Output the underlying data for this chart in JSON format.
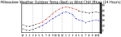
{
  "title": "Milwaukee Weather Outdoor Temp (Red) vs Wind Chill (Blue) (24 Hours)",
  "title_fontsize": 3.5,
  "temp_values": [
    10,
    8,
    7,
    9,
    11,
    13,
    16,
    21,
    26,
    32,
    37,
    41,
    44,
    46,
    45,
    43,
    41,
    38,
    36,
    35,
    34,
    35,
    36,
    35
  ],
  "wind_chill_values": [
    2,
    0,
    -1,
    1,
    3,
    6,
    9,
    13,
    18,
    22,
    26,
    30,
    34,
    36,
    34,
    31,
    23,
    20,
    18,
    15,
    17,
    18,
    20,
    19
  ],
  "black_temp": [
    0,
    1,
    2,
    3,
    4,
    17,
    18,
    19,
    20,
    21,
    22,
    23
  ],
  "hours": [
    0,
    1,
    2,
    3,
    4,
    5,
    6,
    7,
    8,
    9,
    10,
    11,
    12,
    13,
    14,
    15,
    16,
    17,
    18,
    19,
    20,
    21,
    22,
    23
  ],
  "xlabels": [
    "12",
    "1",
    "2",
    "3",
    "4",
    "5",
    "6",
    "7",
    "8",
    "9",
    "10",
    "11",
    "12",
    "1",
    "2",
    "3",
    "4",
    "5",
    "6",
    "7",
    "8",
    "9",
    "10",
    "11"
  ],
  "ylim": [
    -5,
    52
  ],
  "yticks": [
    0,
    10,
    20,
    30,
    40,
    50
  ],
  "ytick_labels": [
    "0",
    "10",
    "20",
    "30",
    "40",
    "50"
  ],
  "ylabel_fontsize": 3.0,
  "xlabel_fontsize": 2.8,
  "grid_color": "#999999",
  "temp_color": "#cc0000",
  "wind_chill_color": "#0000bb",
  "black_color": "#000000",
  "bg_color": "#ffffff"
}
